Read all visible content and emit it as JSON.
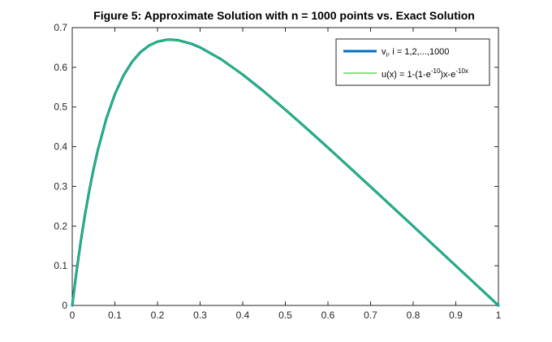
{
  "chart_data": {
    "type": "line",
    "title": "Figure 5: Approximate Solution with n = 1000 points vs. Exact Solution",
    "xlabel": "",
    "ylabel": "",
    "xlim": [
      0,
      1
    ],
    "ylim": [
      0,
      0.7
    ],
    "xticks": [
      "0",
      "0.1",
      "0.2",
      "0.3",
      "0.4",
      "0.5",
      "0.6",
      "0.7",
      "0.8",
      "0.9",
      "1"
    ],
    "yticks": [
      "0",
      "0.1",
      "0.2",
      "0.3",
      "0.4",
      "0.5",
      "0.6",
      "0.7"
    ],
    "grid": false,
    "legend_position": "top-right",
    "x": [
      0,
      0.005,
      0.01,
      0.02,
      0.03,
      0.04,
      0.05,
      0.06,
      0.08,
      0.1,
      0.12,
      0.14,
      0.16,
      0.18,
      0.2,
      0.22,
      0.23,
      0.25,
      0.28,
      0.3,
      0.35,
      0.4,
      0.45,
      0.5,
      0.55,
      0.6,
      0.65,
      0.7,
      0.75,
      0.8,
      0.85,
      0.9,
      0.95,
      1.0
    ],
    "series": [
      {
        "legend_main": "v",
        "legend_sub": "i",
        "legend_rest": ", i = 1,2,...,1000",
        "color": "#0072BD",
        "values": [
          0,
          0.0438,
          0.0852,
          0.1613,
          0.2292,
          0.2897,
          0.3435,
          0.3912,
          0.4707,
          0.5321,
          0.5788,
          0.6134,
          0.6381,
          0.6547,
          0.6647,
          0.6692,
          0.6697,
          0.6679,
          0.6592,
          0.6502,
          0.6198,
          0.5817,
          0.5389,
          0.4933,
          0.4459,
          0.3975,
          0.3485,
          0.2991,
          0.2494,
          0.1997,
          0.1498,
          0.0999,
          0.05,
          0.0
        ]
      },
      {
        "legend_pre": "u(x) = 1-(1-e",
        "legend_sup1": "-10",
        "legend_mid": ")x-e",
        "legend_sup2": "-10x",
        "color": "#33DD33",
        "values": [
          0,
          0.0438,
          0.0852,
          0.1613,
          0.2292,
          0.2897,
          0.3435,
          0.3912,
          0.4707,
          0.5321,
          0.5788,
          0.6134,
          0.6381,
          0.6547,
          0.6647,
          0.6692,
          0.6697,
          0.6679,
          0.6592,
          0.6502,
          0.6198,
          0.5817,
          0.5389,
          0.4933,
          0.4459,
          0.3975,
          0.3485,
          0.2991,
          0.2494,
          0.1997,
          0.1498,
          0.0999,
          0.05,
          0.0
        ]
      }
    ]
  }
}
